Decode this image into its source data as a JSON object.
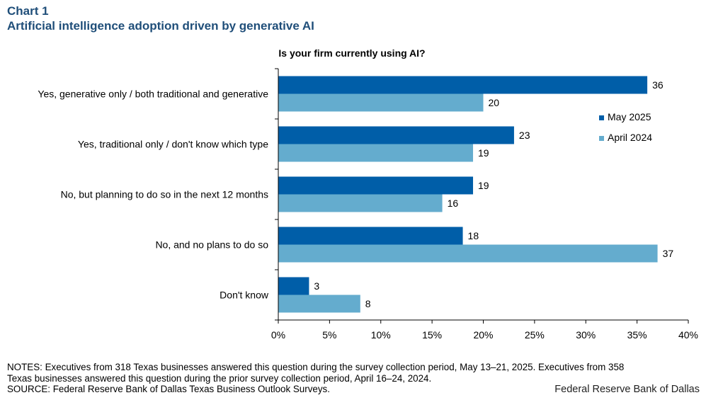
{
  "header": {
    "chart_number": "Chart 1",
    "title": "Artificial intelligence adoption driven by generative AI"
  },
  "chart_data": {
    "type": "bar",
    "orientation": "horizontal",
    "subtitle": "Is your firm currently using AI?",
    "categories": [
      "Yes, generative only / both traditional and generative",
      "Yes, traditional only / don't know which type",
      "No, but planning to do so in the next 12 months",
      "No, and no plans to do so",
      "Don't know"
    ],
    "series": [
      {
        "name": "May 2025",
        "color": "#005ea8",
        "values": [
          36,
          23,
          19,
          18,
          3
        ]
      },
      {
        "name": "April 2024",
        "color": "#64acce",
        "values": [
          20,
          19,
          16,
          37,
          8
        ]
      }
    ],
    "xlim": [
      0,
      40
    ],
    "xticks": [
      0,
      5,
      10,
      15,
      20,
      25,
      30,
      35,
      40
    ],
    "tick_format": "%",
    "legend_position": "right",
    "grid": false
  },
  "footer": {
    "notes_line1": "NOTES: Executives from 318 Texas businesses answered this question during the survey collection period, May 13–21, 2025. Executives from 358",
    "notes_line2": "Texas businesses answered this question during the prior survey collection period, April 16–24, 2024.",
    "source": "SOURCE: Federal Reserve Bank of Dallas Texas Business Outlook Surveys.",
    "brand": "Federal Reserve Bank of Dallas"
  }
}
